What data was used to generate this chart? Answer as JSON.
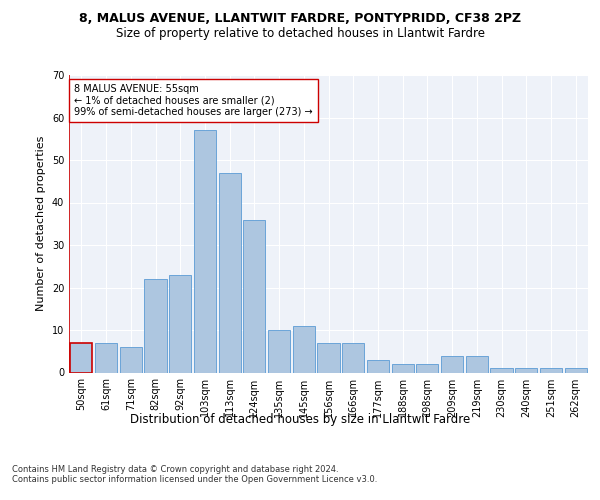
{
  "title1": "8, MALUS AVENUE, LLANTWIT FARDRE, PONTYPRIDD, CF38 2PZ",
  "title2": "Size of property relative to detached houses in Llantwit Fardre",
  "xlabel": "Distribution of detached houses by size in Llantwit Fardre",
  "ylabel": "Number of detached properties",
  "categories": [
    "50sqm",
    "61sqm",
    "71sqm",
    "82sqm",
    "92sqm",
    "103sqm",
    "113sqm",
    "124sqm",
    "135sqm",
    "145sqm",
    "156sqm",
    "166sqm",
    "177sqm",
    "188sqm",
    "198sqm",
    "209sqm",
    "219sqm",
    "230sqm",
    "240sqm",
    "251sqm",
    "262sqm"
  ],
  "values": [
    7,
    7,
    6,
    22,
    23,
    57,
    47,
    36,
    10,
    11,
    7,
    7,
    3,
    2,
    2,
    4,
    4,
    1,
    1,
    1,
    1
  ],
  "bar_color": "#adc6e0",
  "bar_edge_color": "#5b9bd5",
  "highlight_bar_edge_color": "#cc0000",
  "annotation_text": "8 MALUS AVENUE: 55sqm\n← 1% of detached houses are smaller (2)\n99% of semi-detached houses are larger (273) →",
  "ylim": [
    0,
    70
  ],
  "yticks": [
    0,
    10,
    20,
    30,
    40,
    50,
    60,
    70
  ],
  "background_color": "#eef2f9",
  "grid_color": "#ffffff",
  "footer": "Contains HM Land Registry data © Crown copyright and database right 2024.\nContains public sector information licensed under the Open Government Licence v3.0.",
  "title1_fontsize": 9,
  "title2_fontsize": 8.5,
  "xlabel_fontsize": 8.5,
  "ylabel_fontsize": 8,
  "tick_fontsize": 7,
  "annotation_fontsize": 7,
  "footer_fontsize": 6
}
